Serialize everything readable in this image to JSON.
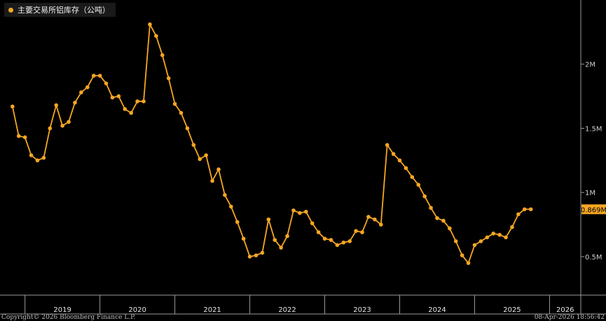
{
  "legend": {
    "label": "主要交易所铝库存（公吨）",
    "color": "#f5a623"
  },
  "last_value_label": "0.869M",
  "footer": {
    "left": "Copyright© 2026 Bloomberg Finance L.P.",
    "right": "08-Apr-2026 18:56:42"
  },
  "colors": {
    "series": "#f5a623",
    "background": "#000000",
    "axis": "#9a9a9a"
  },
  "chart_data": {
    "type": "line",
    "series": [
      {
        "name": "主要交易所铝库存（公吨）",
        "points": [
          [
            "2018-11",
            1.67
          ],
          [
            "2018-12",
            1.44
          ],
          [
            "2019-01",
            1.43
          ],
          [
            "2019-02",
            1.29
          ],
          [
            "2019-03",
            1.25
          ],
          [
            "2019-04",
            1.27
          ],
          [
            "2019-05",
            1.5
          ],
          [
            "2019-06",
            1.68
          ],
          [
            "2019-07",
            1.52
          ],
          [
            "2019-08",
            1.55
          ],
          [
            "2019-09",
            1.7
          ],
          [
            "2019-10",
            1.78
          ],
          [
            "2019-11",
            1.82
          ],
          [
            "2019-12",
            1.91
          ],
          [
            "2020-01",
            1.91
          ],
          [
            "2020-02",
            1.85
          ],
          [
            "2020-03",
            1.74
          ],
          [
            "2020-04",
            1.75
          ],
          [
            "2020-05",
            1.65
          ],
          [
            "2020-06",
            1.62
          ],
          [
            "2020-07",
            1.71
          ],
          [
            "2020-08",
            1.71
          ],
          [
            "2020-09",
            2.31
          ],
          [
            "2020-10",
            2.22
          ],
          [
            "2020-11",
            2.07
          ],
          [
            "2020-12",
            1.89
          ],
          [
            "2021-01",
            1.69
          ],
          [
            "2021-02",
            1.62
          ],
          [
            "2021-03",
            1.5
          ],
          [
            "2021-04",
            1.37
          ],
          [
            "2021-05",
            1.26
          ],
          [
            "2021-06",
            1.29
          ],
          [
            "2021-07",
            1.09
          ],
          [
            "2021-08",
            1.18
          ],
          [
            "2021-09",
            0.98
          ],
          [
            "2021-10",
            0.89
          ],
          [
            "2021-11",
            0.77
          ],
          [
            "2021-12",
            0.64
          ],
          [
            "2022-01",
            0.5
          ],
          [
            "2022-02",
            0.51
          ],
          [
            "2022-03",
            0.53
          ],
          [
            "2022-04",
            0.79
          ],
          [
            "2022-05",
            0.63
          ],
          [
            "2022-06",
            0.57
          ],
          [
            "2022-07",
            0.66
          ],
          [
            "2022-08",
            0.86
          ],
          [
            "2022-09",
            0.84
          ],
          [
            "2022-10",
            0.85
          ],
          [
            "2022-11",
            0.76
          ],
          [
            "2022-12",
            0.69
          ],
          [
            "2023-01",
            0.64
          ],
          [
            "2023-02",
            0.63
          ],
          [
            "2023-03",
            0.59
          ],
          [
            "2023-04",
            0.61
          ],
          [
            "2023-05",
            0.62
          ],
          [
            "2023-06",
            0.7
          ],
          [
            "2023-07",
            0.69
          ],
          [
            "2023-08",
            0.81
          ],
          [
            "2023-09",
            0.79
          ],
          [
            "2023-10",
            0.75
          ],
          [
            "2023-11",
            1.37
          ],
          [
            "2023-12",
            1.3
          ],
          [
            "2024-01",
            1.25
          ],
          [
            "2024-02",
            1.19
          ],
          [
            "2024-03",
            1.12
          ],
          [
            "2024-04",
            1.06
          ],
          [
            "2024-05",
            0.97
          ],
          [
            "2024-06",
            0.88
          ],
          [
            "2024-07",
            0.8
          ],
          [
            "2024-08",
            0.78
          ],
          [
            "2024-09",
            0.72
          ],
          [
            "2024-10",
            0.62
          ],
          [
            "2024-11",
            0.51
          ],
          [
            "2024-12",
            0.45
          ],
          [
            "2025-01",
            0.59
          ],
          [
            "2025-02",
            0.62
          ],
          [
            "2025-03",
            0.65
          ],
          [
            "2025-04",
            0.68
          ],
          [
            "2025-05",
            0.67
          ],
          [
            "2025-06",
            0.65
          ],
          [
            "2025-07",
            0.73
          ],
          [
            "2025-08",
            0.83
          ],
          [
            "2025-09",
            0.869
          ],
          [
            "2025-10",
            0.869
          ]
        ]
      }
    ],
    "x_tick_labels": [
      "2019",
      "2020",
      "2021",
      "2022",
      "2023",
      "2024",
      "2025",
      "2026"
    ],
    "y_ticks": [
      0.5,
      1,
      1.5,
      2
    ],
    "y_tick_labels": [
      "0.5M",
      "1M",
      "1.5M",
      "2M"
    ],
    "ylim": [
      0.2,
      2.5
    ],
    "xlim": [
      "2018-09",
      "2026-06"
    ],
    "grid": false,
    "legend_position": "top-left"
  }
}
